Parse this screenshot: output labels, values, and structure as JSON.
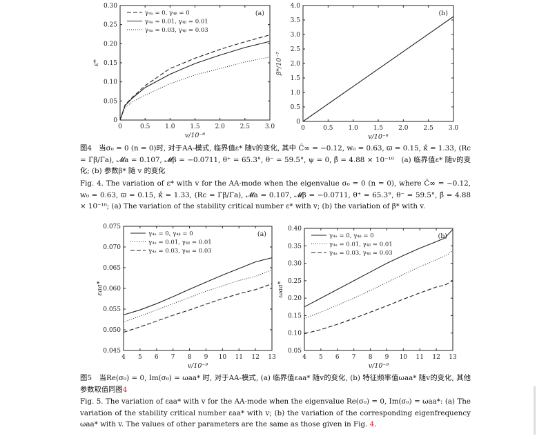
{
  "chart_data": [
    {
      "id": "fig4a",
      "type": "line",
      "panel_label": "(a)",
      "xlabel": "v/10⁻⁶",
      "ylabel": "ε*",
      "xlim": [
        0,
        3.0
      ],
      "ylim": [
        0,
        0.3
      ],
      "xticks": [
        "0",
        "0.5",
        "1.0",
        "1.5",
        "2.0",
        "2.5",
        "3.0"
      ],
      "yticks": [
        "0",
        "0.05",
        "0.10",
        "0.15",
        "0.20",
        "0.25",
        "0.30"
      ],
      "legend_position": "top-left",
      "series": [
        {
          "name": "γ₄ₐ = 0, γ₄ᵦ = 0",
          "style": "dashed",
          "x": [
            0,
            0.1,
            0.25,
            0.5,
            1.0,
            1.5,
            2.0,
            2.5,
            3.0
          ],
          "y": [
            0,
            0.04,
            0.06,
            0.09,
            0.135,
            0.162,
            0.185,
            0.205,
            0.223
          ]
        },
        {
          "name": "γ₄ₐ = 0.01, γ₄ᵦ = 0.01",
          "style": "solid",
          "x": [
            0,
            0.1,
            0.25,
            0.5,
            1.0,
            1.5,
            2.0,
            2.5,
            3.0
          ],
          "y": [
            0,
            0.038,
            0.058,
            0.085,
            0.12,
            0.148,
            0.17,
            0.19,
            0.206
          ]
        },
        {
          "name": "γ₄ₐ = 0.03, γ₄ᵦ = 0.03",
          "style": "dotted",
          "x": [
            0,
            0.1,
            0.25,
            0.5,
            1.0,
            1.5,
            2.0,
            2.5,
            3.0
          ],
          "y": [
            0,
            0.033,
            0.048,
            0.065,
            0.095,
            0.118,
            0.135,
            0.152,
            0.165
          ]
        }
      ]
    },
    {
      "id": "fig4b",
      "type": "line",
      "panel_label": "(b)",
      "xlabel": "v/10⁻⁶",
      "ylabel": "β*/10⁻⁷",
      "xlim": [
        0,
        3.0
      ],
      "ylim": [
        0,
        4.0
      ],
      "xticks": [
        "0",
        "0.5",
        "1.0",
        "1.5",
        "2.0",
        "2.5",
        "3.0"
      ],
      "yticks": [
        "0",
        "0.5",
        "1.0",
        "1.5",
        "2.0",
        "2.5",
        "3.0",
        "3.5",
        "4.0"
      ],
      "series": [
        {
          "style": "solid",
          "x": [
            0,
            3.0
          ],
          "y": [
            0,
            3.62
          ]
        }
      ]
    },
    {
      "id": "fig5a",
      "type": "line",
      "panel_label": "(a)",
      "xlabel": "v/10⁻⁹",
      "ylabel": "εaa*",
      "xlim": [
        4,
        13
      ],
      "ylim": [
        0.045,
        0.075
      ],
      "xticks": [
        "4",
        "5",
        "6",
        "7",
        "8",
        "9",
        "10",
        "11",
        "12",
        "13"
      ],
      "yticks": [
        "0.045",
        "0.050",
        "0.055",
        "0.060",
        "0.065",
        "0.070",
        "0.075"
      ],
      "legend_position": "top-left",
      "series": [
        {
          "name": "γ₄ₐ = 0, γ₄ᵦ = 0",
          "style": "solid",
          "x": [
            4,
            5,
            6,
            7,
            8,
            9,
            10,
            11,
            12,
            13
          ],
          "y": [
            0.0536,
            0.0548,
            0.0563,
            0.058,
            0.0598,
            0.0615,
            0.0632,
            0.0648,
            0.0664,
            0.0674
          ]
        },
        {
          "name": "γ₄ₐ = 0.01, γ₄ᵦ = 0.01",
          "style": "dotted",
          "x": [
            4,
            5,
            6,
            7,
            8,
            9,
            10,
            11,
            12,
            13
          ],
          "y": [
            0.0519,
            0.0533,
            0.0548,
            0.0563,
            0.0578,
            0.0593,
            0.0606,
            0.0619,
            0.0629,
            0.0645
          ]
        },
        {
          "name": "γ₄ₐ = 0.03, γ₄ᵦ = 0.03",
          "style": "dashed",
          "x": [
            4,
            5,
            6,
            7,
            8,
            9,
            10,
            11,
            12,
            13
          ],
          "y": [
            0.0494,
            0.0507,
            0.0521,
            0.0535,
            0.0548,
            0.0562,
            0.0575,
            0.0587,
            0.0597,
            0.0611
          ]
        }
      ]
    },
    {
      "id": "fig5b",
      "type": "line",
      "panel_label": "(b)",
      "xlabel": "v/10⁻⁹",
      "ylabel": "ωaa*",
      "xlim": [
        4,
        13
      ],
      "ylim": [
        0.05,
        0.4
      ],
      "xticks": [
        "4",
        "5",
        "6",
        "7",
        "8",
        "9",
        "10",
        "11",
        "12",
        "13"
      ],
      "yticks": [
        "0.05",
        "0.10",
        "0.15",
        "0.20",
        "0.25",
        "0.30",
        "0.35",
        "0.40"
      ],
      "legend_position": "top-left",
      "series": [
        {
          "name": "γ₄ₐ = 0, γ₄ᵦ = 0",
          "style": "solid",
          "x": [
            4,
            5,
            6,
            7,
            8,
            9,
            10,
            11,
            12,
            12.5,
            13
          ],
          "y": [
            0.175,
            0.2,
            0.225,
            0.25,
            0.275,
            0.3,
            0.322,
            0.343,
            0.362,
            0.372,
            0.397
          ]
        },
        {
          "name": "γ₄ₐ = 0.01, γ₄ᵦ = 0.01",
          "style": "dotted",
          "x": [
            4,
            5,
            6,
            7,
            8,
            9,
            10,
            11,
            12,
            12.7,
            13
          ],
          "y": [
            0.142,
            0.16,
            0.18,
            0.2,
            0.222,
            0.245,
            0.268,
            0.29,
            0.31,
            0.325,
            0.338
          ]
        },
        {
          "name": "γ₄ₐ = 0.03, γ₄ᵦ = 0.03",
          "style": "dashed",
          "x": [
            4,
            5,
            6,
            7,
            8,
            9,
            10,
            11,
            12,
            12.5,
            13
          ],
          "y": [
            0.098,
            0.11,
            0.125,
            0.142,
            0.16,
            0.178,
            0.197,
            0.215,
            0.232,
            0.237,
            0.25
          ]
        }
      ]
    }
  ],
  "captions": {
    "fig4_zh": "图4　当σ₀ = 0 (n = 0)时, 对于AA-模式, 临界值ε* 随v的变化, 其中 Ĉ∞ = −0.12, w₀ = 0.63, ϖ = 0.15, κ̂ = 1.33, (Rc = Γ̄β/Γ̄a), 𝓜a = 0.107, 𝓜β = −0.0711, θ⁺ = 65.3°, θ⁻ = 59.5°, ψ = 0, β̂ = 4.88 × 10⁻¹⁰　(a) 临界值ε* 随v的变化; (b) 参数β* 随 v 的变化",
    "fig4_en": "Fig. 4. The variation of ε* with v for the AA-mode when the eigenvalue σ₀ = 0 (n = 0), where Ĉ∞ = −0.12, w₀ = 0.63, ϖ = 0.15, κ̂ = 1.33, (Rc = Γ̄β/Γ̄a), 𝓜a = 0.107, 𝓜β = −0.0711, θ⁺ = 65.3°, θ⁻ = 59.5°, β̂ = 4.88 × 10⁻¹⁰; (a) The variation of the stability critical number ε* with v; (b) the variation of β* with v.",
    "fig5_zh": "图5　当Re(σ₀) = 0, Im(σ₀) = ωaa* 时, 对于AA-模式, (a) 临界值εaa* 随v的变化, (b) 特征频率值ωaa* 随v的变化, 其他参数取值同图",
    "fig5_zh_ref": "4",
    "fig5_en": "Fig. 5. The variation of εaa* with v for the AA-mode when the eigenvalue Re(σ₀) = 0, Im(σ₀) = ωaa*: (a) The variation of the stability critical number εaa* with v; (b) the variation of the corresponding eigenfrequency ωaa* with v. The values of other parameters are the same as those given in Fig.",
    "fig5_en_ref": "4",
    "fig5_en_end": "."
  },
  "colors": {
    "reference_link": "#dd2222",
    "line": "#222222"
  }
}
